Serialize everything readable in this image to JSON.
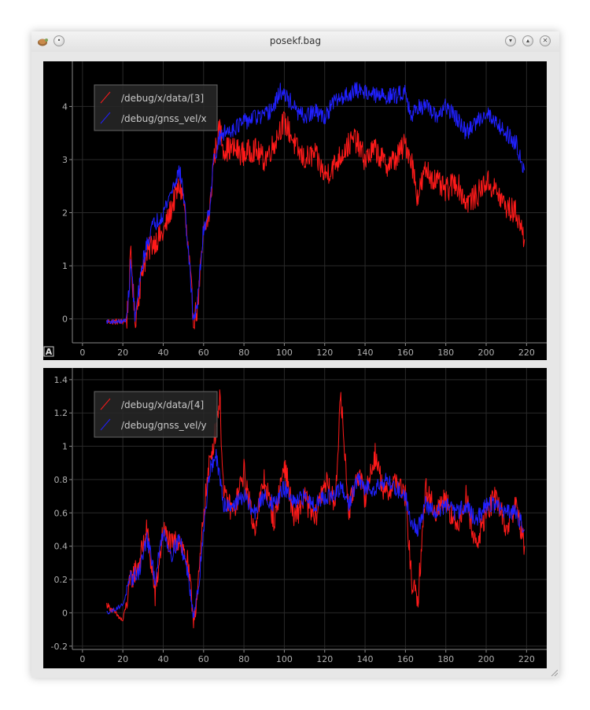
{
  "window": {
    "title": "posekf.bag",
    "icon": "ros-turtle-icon",
    "controls": [
      "minimize-icon",
      "maximize-icon",
      "close-icon"
    ]
  },
  "plot_a_badge": "A",
  "chart_data": [
    {
      "type": "line",
      "xlim": [
        -5,
        230
      ],
      "ylim": [
        -0.45,
        4.85
      ],
      "x_ticks": [
        0,
        20,
        40,
        60,
        80,
        100,
        120,
        140,
        160,
        180,
        200,
        220
      ],
      "y_ticks": [
        0,
        1,
        2,
        3,
        4
      ],
      "y_tick_labels": [
        "0",
        "1",
        "2",
        "3",
        "4"
      ],
      "grid": true,
      "legend": "top-left",
      "series": [
        {
          "name": "/debug/x/data/[3]",
          "color": "#ff1a1a",
          "x": [
            12,
            20,
            22,
            24,
            26,
            30,
            34,
            40,
            45,
            48,
            50,
            53,
            55,
            57,
            60,
            63,
            65,
            68,
            70,
            75,
            80,
            85,
            90,
            95,
            98,
            100,
            103,
            106,
            110,
            115,
            120,
            125,
            130,
            135,
            140,
            145,
            150,
            155,
            160,
            163,
            166,
            170,
            175,
            180,
            185,
            190,
            195,
            200,
            205,
            210,
            215,
            219
          ],
          "y": [
            -0.05,
            -0.05,
            0.0,
            1.2,
            -0.05,
            1.0,
            1.4,
            1.6,
            2.2,
            2.5,
            2.3,
            1.0,
            0.0,
            0.2,
            1.6,
            2.0,
            3.0,
            3.6,
            3.2,
            3.2,
            3.1,
            3.2,
            3.0,
            3.3,
            3.6,
            3.7,
            3.5,
            3.2,
            3.0,
            3.1,
            2.7,
            2.9,
            3.2,
            3.4,
            3.0,
            3.2,
            2.9,
            3.0,
            3.3,
            3.0,
            2.3,
            2.8,
            2.6,
            2.4,
            2.6,
            2.2,
            2.3,
            2.6,
            2.4,
            2.1,
            2.0,
            1.5
          ]
        },
        {
          "name": "/debug/gnss_vel/x",
          "color": "#2020ff",
          "x": [
            12,
            20,
            22,
            24,
            26,
            30,
            34,
            40,
            45,
            48,
            50,
            53,
            55,
            57,
            60,
            63,
            65,
            68,
            70,
            75,
            80,
            85,
            90,
            95,
            98,
            100,
            103,
            106,
            110,
            115,
            120,
            125,
            130,
            135,
            140,
            145,
            150,
            155,
            160,
            163,
            166,
            170,
            175,
            180,
            185,
            190,
            195,
            200,
            205,
            210,
            215,
            219
          ],
          "y": [
            -0.05,
            -0.05,
            0.0,
            1.1,
            0.0,
            1.1,
            1.7,
            2.0,
            2.5,
            2.8,
            2.4,
            1.0,
            0.0,
            0.3,
            1.7,
            2.1,
            3.0,
            3.4,
            3.5,
            3.6,
            3.7,
            3.8,
            3.8,
            4.0,
            4.3,
            4.2,
            4.1,
            3.9,
            3.8,
            3.9,
            3.8,
            4.1,
            4.2,
            4.3,
            4.3,
            4.2,
            4.2,
            4.2,
            4.3,
            3.8,
            4.0,
            4.0,
            3.8,
            4.0,
            3.8,
            3.5,
            3.7,
            3.9,
            3.7,
            3.5,
            3.3,
            2.8
          ]
        }
      ]
    },
    {
      "type": "line",
      "xlim": [
        -5,
        230
      ],
      "ylim": [
        -0.22,
        1.47
      ],
      "x_ticks": [
        0,
        20,
        40,
        60,
        80,
        100,
        120,
        140,
        160,
        180,
        200,
        220
      ],
      "y_ticks": [
        -0.2,
        0,
        0.2,
        0.4,
        0.6,
        0.8,
        1,
        1.2,
        1.4
      ],
      "y_tick_labels": [
        "-0.2",
        "0",
        "0.2",
        "0.4",
        "0.6",
        "0.8",
        "1",
        "1.2",
        "1.4"
      ],
      "grid": true,
      "legend": "top-left",
      "series": [
        {
          "name": "/debug/x/data/[4]",
          "color": "#ff1a1a",
          "x": [
            12,
            16,
            20,
            24,
            28,
            32,
            36,
            40,
            44,
            48,
            52,
            55,
            57,
            60,
            63,
            66,
            68,
            70,
            75,
            80,
            85,
            90,
            95,
            100,
            105,
            110,
            115,
            120,
            125,
            128,
            132,
            136,
            140,
            145,
            150,
            155,
            160,
            163,
            166,
            170,
            175,
            180,
            185,
            190,
            195,
            200,
            205,
            210,
            215,
            219
          ],
          "y": [
            0.05,
            0.0,
            -0.05,
            0.2,
            0.3,
            0.5,
            0.1,
            0.5,
            0.4,
            0.45,
            0.3,
            -0.02,
            0.1,
            0.6,
            0.9,
            1.1,
            1.3,
            0.7,
            0.6,
            0.85,
            0.5,
            0.8,
            0.55,
            0.9,
            0.55,
            0.7,
            0.55,
            0.8,
            0.65,
            1.3,
            0.6,
            0.85,
            0.7,
            0.95,
            0.7,
            0.8,
            0.7,
            0.2,
            0.05,
            0.75,
            0.6,
            0.7,
            0.5,
            0.7,
            0.4,
            0.6,
            0.7,
            0.5,
            0.65,
            0.4
          ]
        },
        {
          "name": "/debug/gnss_vel/y",
          "color": "#2020ff",
          "x": [
            12,
            16,
            20,
            24,
            28,
            32,
            36,
            40,
            44,
            48,
            52,
            55,
            57,
            60,
            63,
            66,
            68,
            70,
            75,
            80,
            85,
            90,
            95,
            100,
            105,
            110,
            115,
            120,
            125,
            128,
            132,
            136,
            140,
            145,
            150,
            155,
            160,
            163,
            166,
            170,
            175,
            180,
            185,
            190,
            195,
            200,
            205,
            210,
            215,
            219
          ],
          "y": [
            0.0,
            0.02,
            0.05,
            0.2,
            0.25,
            0.45,
            0.2,
            0.5,
            0.35,
            0.45,
            0.25,
            0.0,
            0.1,
            0.5,
            0.85,
            0.95,
            0.8,
            0.65,
            0.65,
            0.7,
            0.6,
            0.7,
            0.65,
            0.75,
            0.65,
            0.7,
            0.65,
            0.7,
            0.7,
            0.75,
            0.65,
            0.8,
            0.75,
            0.75,
            0.8,
            0.75,
            0.7,
            0.55,
            0.5,
            0.65,
            0.6,
            0.65,
            0.6,
            0.65,
            0.55,
            0.65,
            0.65,
            0.6,
            0.6,
            0.5
          ]
        }
      ]
    }
  ]
}
